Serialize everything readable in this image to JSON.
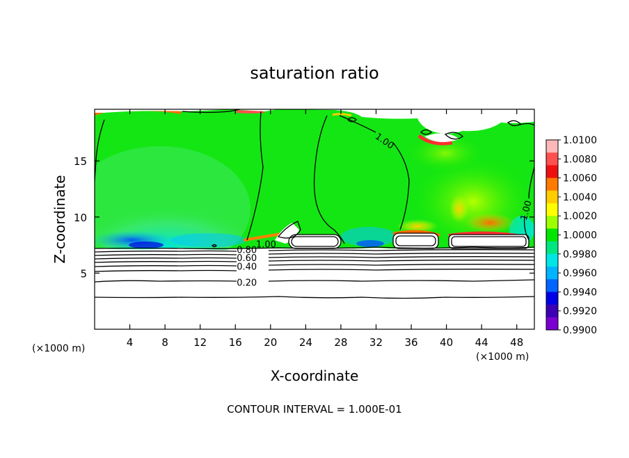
{
  "chart_data": {
    "type": "heatmap",
    "title": "saturation ratio",
    "xlabel": "X-coordinate",
    "ylabel": "Z-coordinate",
    "x_units_left": "(×1000 m)",
    "x_units_right": "(×1000 m)",
    "footer": "CONTOUR INTERVAL = 1.000E-01",
    "xlim": [
      0,
      50
    ],
    "ylim": [
      0,
      19.6
    ],
    "x_ticks": [
      4,
      8,
      12,
      16,
      20,
      24,
      28,
      32,
      36,
      40,
      44,
      48
    ],
    "y_ticks": [
      5,
      10,
      15
    ],
    "colorbar": {
      "min": 0.99,
      "max": 1.01,
      "tick_labels": [
        "1.0100",
        "1.0080",
        "1.0060",
        "1.0040",
        "1.0020",
        "1.0000",
        "0.9980",
        "0.9960",
        "0.9940",
        "0.9920",
        "0.9900"
      ],
      "colors": [
        "#ffb8b8",
        "#ff5050",
        "#ee1010",
        "#ff7a00",
        "#ffcc00",
        "#ffff00",
        "#9eff00",
        "#00e600",
        "#00e680",
        "#00e6e6",
        "#00b4ff",
        "#0064ff",
        "#0000e6",
        "#3c00b4",
        "#7a00d2"
      ]
    },
    "contour_labels": [
      {
        "text": "1.00",
        "x": 33.0,
        "y": 16.8,
        "angle": 35
      },
      {
        "text": "1.00",
        "x": 49.0,
        "y": 10.6,
        "angle": -75
      },
      {
        "text": "1.00",
        "x": 19.5,
        "y": 7.6,
        "angle": 0
      },
      {
        "text": "0.80",
        "x": 17.3,
        "y": 7.1,
        "angle": 0
      },
      {
        "text": "0.60",
        "x": 17.3,
        "y": 6.4,
        "angle": 0
      },
      {
        "text": "0.40",
        "x": 17.3,
        "y": 5.6,
        "angle": 0
      },
      {
        "text": "0.20",
        "x": 17.3,
        "y": 4.2,
        "angle": 0
      }
    ]
  }
}
